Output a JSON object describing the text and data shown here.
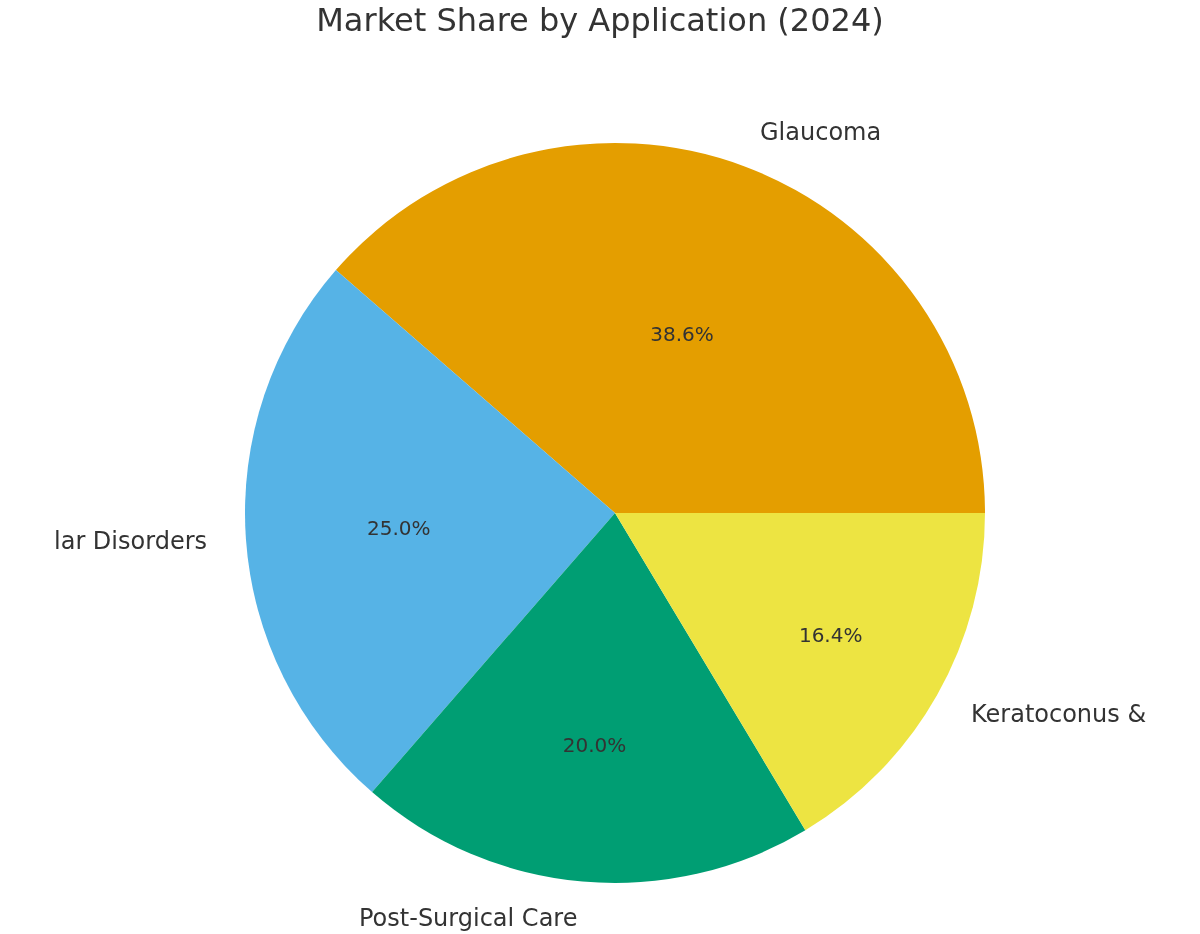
{
  "chart_data": {
    "type": "pie",
    "title": "Market Share by Application (2024)",
    "categories": [
      "Glaucoma",
      "lar Disorders",
      "Post-Surgical Care",
      "Keratoconus &"
    ],
    "values": [
      38.6,
      25.0,
      20.0,
      16.4
    ],
    "value_labels": [
      "38.6%",
      "25.0%",
      "20.0%",
      "16.4%"
    ],
    "colors": [
      "#e49e00",
      "#56b3e6",
      "#009e73",
      "#ede442"
    ],
    "legend": false
  }
}
